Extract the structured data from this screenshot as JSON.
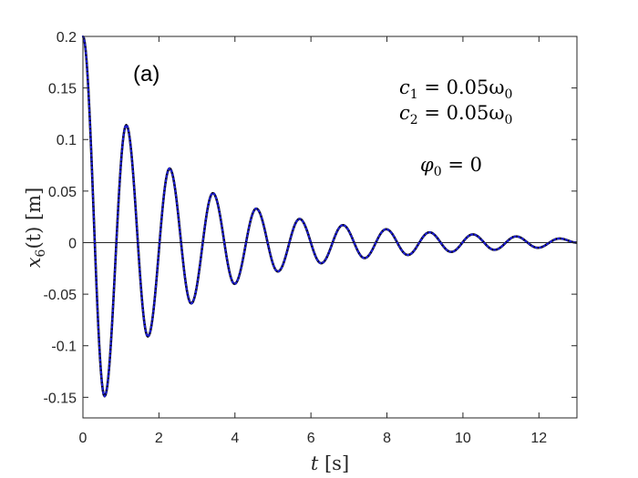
{
  "chart_data": {
    "type": "line",
    "title": "",
    "panel_label": "(a)",
    "xlabel": {
      "var": "t",
      "unit": "[s]"
    },
    "ylabel": {
      "var": "x",
      "sub": "6",
      "arg": "(t)",
      "unit": "[m]"
    },
    "xlim": [
      0,
      13
    ],
    "ylim": [
      -0.17,
      0.2
    ],
    "xticks": [
      0,
      2,
      4,
      6,
      8,
      10,
      12
    ],
    "xtick_labels": [
      "0",
      "2",
      "4",
      "6",
      "8",
      "10",
      "12"
    ],
    "yticks": [
      0.2,
      0.15,
      0.1,
      0.05,
      0,
      -0.05,
      -0.1,
      -0.15
    ],
    "ytick_labels": [
      "0.2",
      "0.15",
      "0.1",
      "0.05",
      "0",
      "-0.05",
      "-0.1",
      "-0.15"
    ],
    "grid": false,
    "zero_line": true,
    "annotations": [
      {
        "base": "c",
        "sub": "1",
        "rhs": " = 0.05ω",
        "rhs_sub": "0"
      },
      {
        "base": "c",
        "sub": "2",
        "rhs": " = 0.05ω",
        "rhs_sub": "0"
      },
      {
        "base": "φ",
        "sub": "0",
        "rhs": " = 0",
        "rhs_sub": ""
      }
    ],
    "series": [
      {
        "style": "solid",
        "color": "#000000",
        "x": [
          0,
          0.57,
          1.14,
          1.71,
          2.28,
          2.85,
          3.42,
          3.99,
          4.56,
          5.13,
          5.7,
          6.27,
          6.84,
          7.41,
          7.98,
          8.55,
          9.12,
          9.69,
          10.26,
          10.83,
          11.4,
          11.97,
          12.54,
          13.0
        ],
        "y": [
          0.2,
          -0.149,
          0.114,
          -0.091,
          0.072,
          -0.059,
          0.048,
          -0.04,
          0.033,
          -0.028,
          0.023,
          -0.02,
          0.017,
          -0.015,
          0.013,
          -0.012,
          0.01,
          -0.009,
          0.008,
          -0.007,
          0.006,
          -0.005,
          0.004,
          0.0
        ]
      },
      {
        "style": "dotted",
        "color": "#1f1fd6",
        "x": [
          0,
          0.57,
          1.14,
          1.71,
          2.28,
          2.85,
          3.42,
          3.99,
          4.56,
          5.13,
          5.7,
          6.27,
          6.84,
          7.41,
          7.98,
          8.55,
          9.12,
          9.69,
          10.26,
          10.83,
          11.4,
          11.97,
          12.54,
          13.0
        ],
        "y": [
          0.2,
          -0.149,
          0.114,
          -0.091,
          0.072,
          -0.059,
          0.048,
          -0.04,
          0.033,
          -0.028,
          0.023,
          -0.02,
          0.017,
          -0.015,
          0.013,
          -0.012,
          0.01,
          -0.009,
          0.008,
          -0.007,
          0.006,
          -0.005,
          0.004,
          0.0
        ]
      }
    ]
  }
}
